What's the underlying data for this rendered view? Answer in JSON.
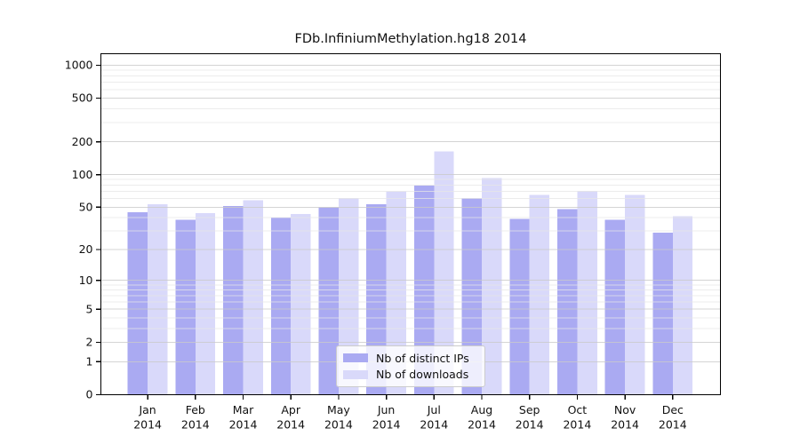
{
  "chart_data": {
    "type": "bar",
    "title": "FDb.InfiniumMethylation.hg18 2014",
    "scale": "log1p",
    "grid": true,
    "legend_position": "bottom-center-inside",
    "categories": [
      "Jan",
      "Feb",
      "Mar",
      "Apr",
      "May",
      "Jun",
      "Jul",
      "Aug",
      "Sep",
      "Oct",
      "Nov",
      "Dec"
    ],
    "x_year_label": "2014",
    "series": [
      {
        "name": "Nb of distinct IPs",
        "color": "#aaaaf2",
        "values": [
          45,
          38,
          51,
          40,
          50,
          53,
          79,
          61,
          39,
          48,
          38,
          29
        ]
      },
      {
        "name": "Nb of downloads",
        "color": "#d9d9fa",
        "values": [
          53,
          44,
          58,
          43,
          61,
          70,
          163,
          93,
          65,
          71,
          65,
          41
        ]
      }
    ],
    "yticks": [
      0,
      1,
      2,
      5,
      10,
      20,
      50,
      100,
      200,
      500,
      1000
    ],
    "ylim": [
      0,
      1000
    ]
  },
  "colors": {
    "axis": "#000000",
    "text": "#111111",
    "grid_major": "#c9c9c9",
    "grid_minor": "#e6e6e6",
    "legend_border": "#cccccc",
    "background": "#ffffff"
  }
}
